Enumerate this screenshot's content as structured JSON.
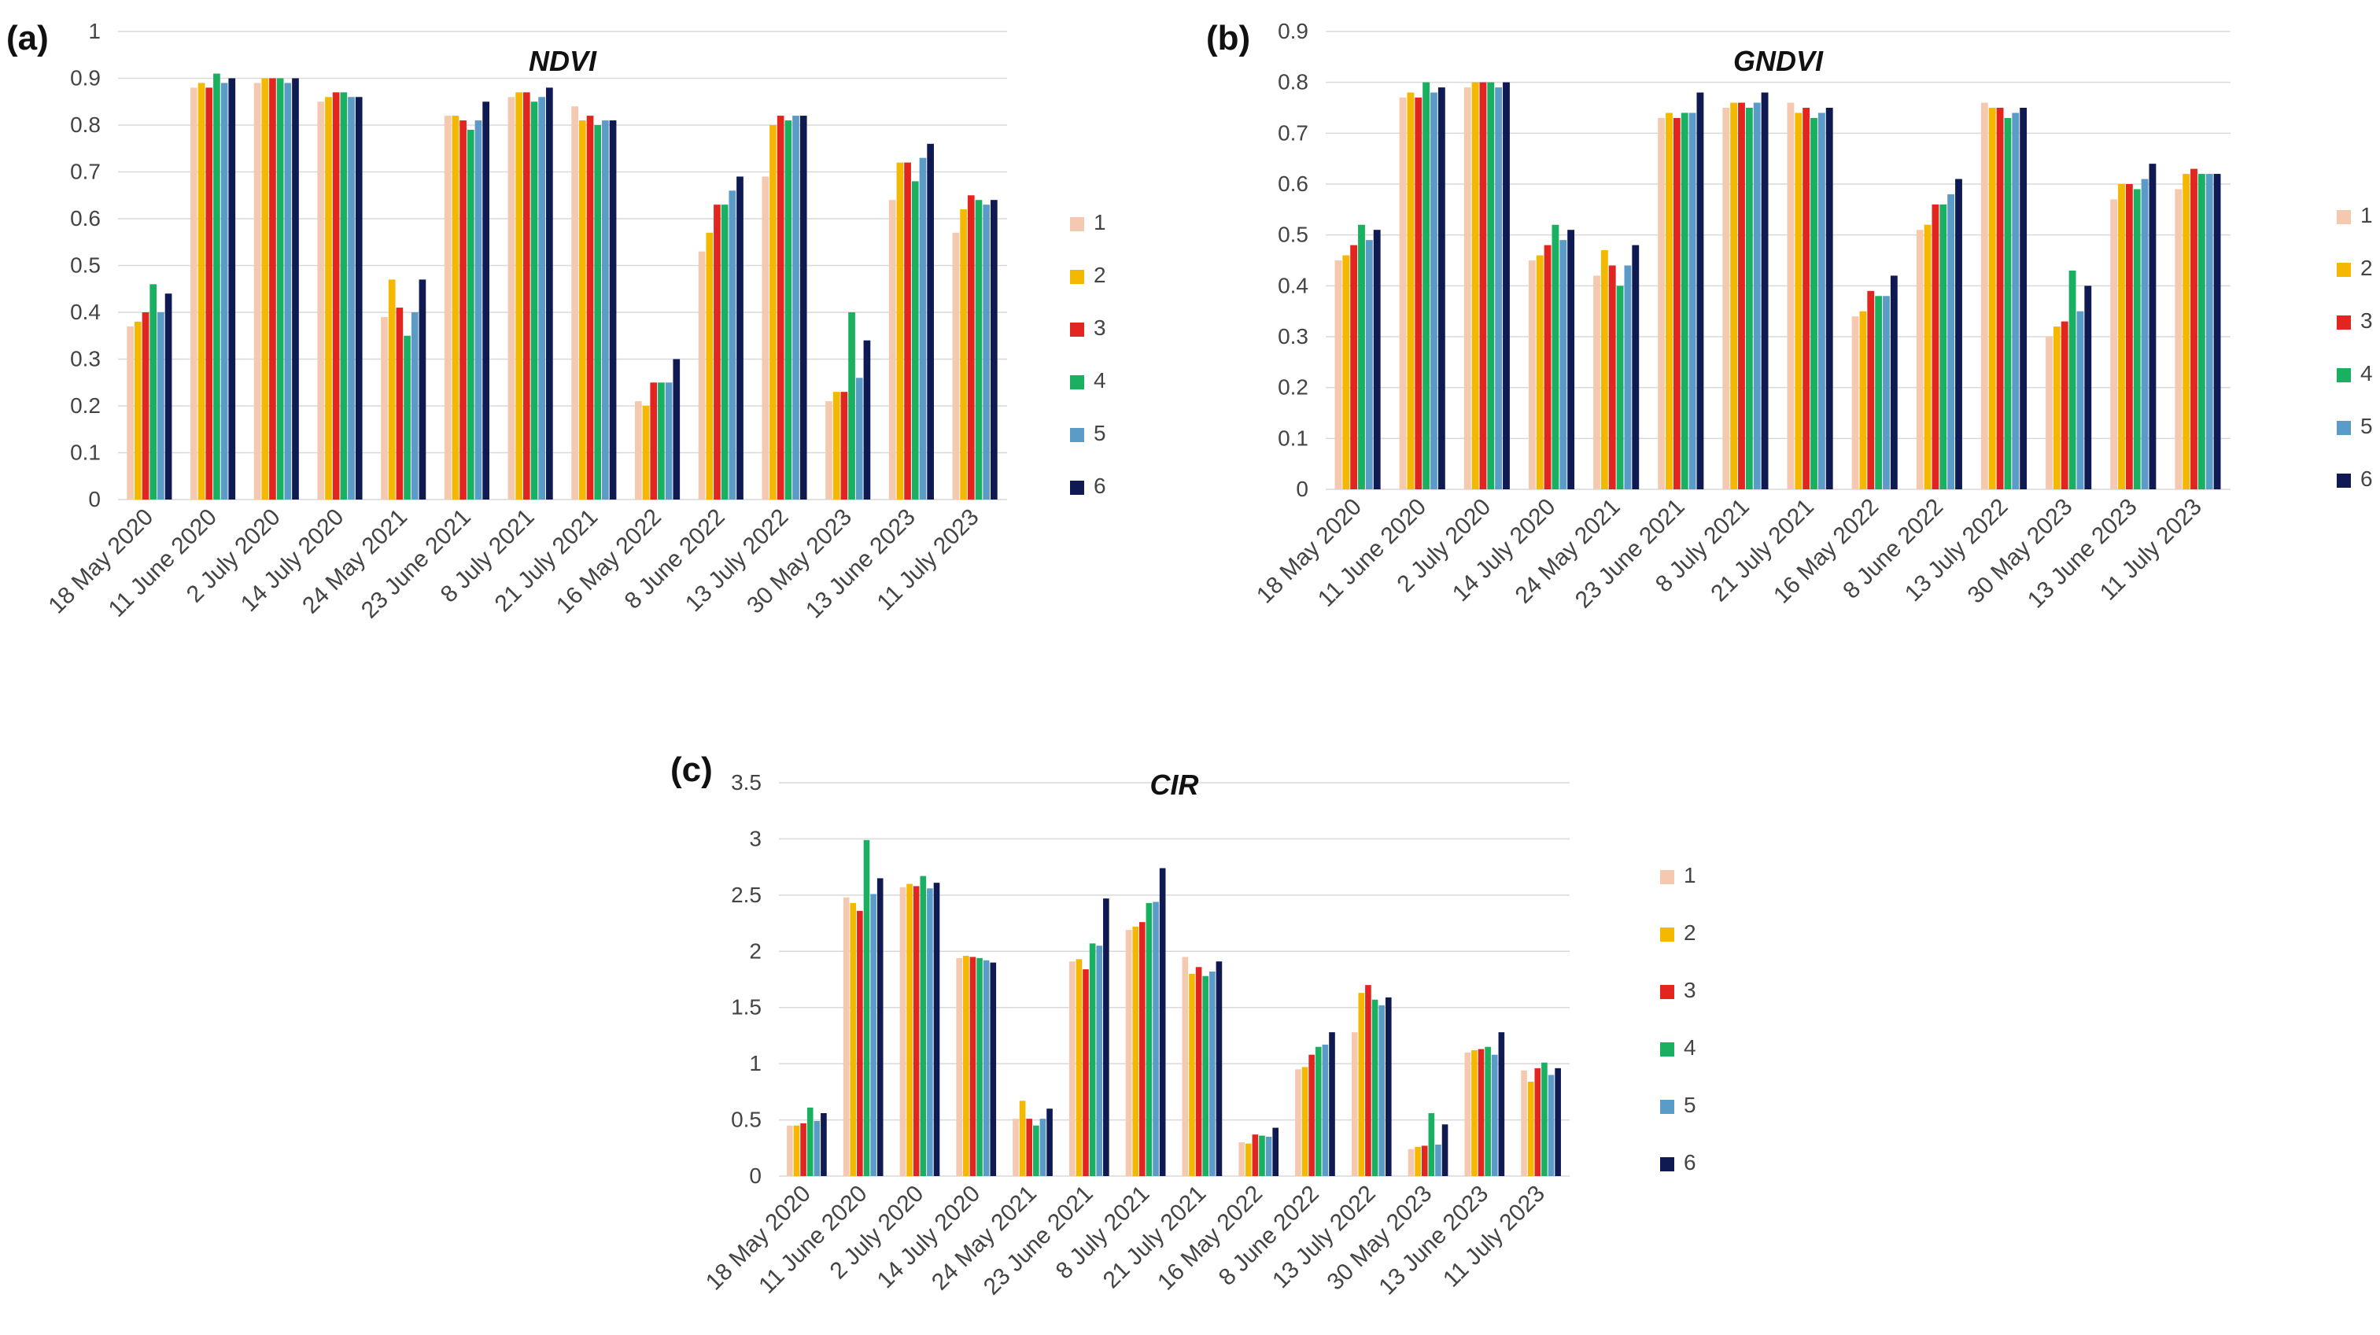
{
  "legend": [
    "1",
    "2",
    "3",
    "4",
    "5",
    "6"
  ],
  "colors": [
    "#f5c9b0",
    "#f5b800",
    "#e3251f",
    "#1ab061",
    "#5b9bc8",
    "#0f1a52"
  ],
  "chart_data": [
    {
      "panel_label": "(a)",
      "type": "bar",
      "title": "NDVI",
      "xlabel": "",
      "ylabel": "",
      "ylim": [
        0,
        1
      ],
      "yticks": [
        "0",
        "0.1",
        "0.2",
        "0.3",
        "0.4",
        "0.5",
        "0.6",
        "0.7",
        "0.8",
        "0.9",
        "1"
      ],
      "grid": true,
      "legend_position": "right",
      "categories": [
        "18 May 2020",
        "11 June 2020",
        "2 July 2020",
        "14 July 2020",
        "24 May 2021",
        "23 June 2021",
        "8 July 2021",
        "21 July 2021",
        "16 May 2022",
        "8 June 2022",
        "13 July 2022",
        "30 May 2023",
        "13 June 2023",
        "11 July 2023"
      ],
      "series": [
        {
          "name": "1",
          "values": [
            0.37,
            0.88,
            0.89,
            0.85,
            0.39,
            0.82,
            0.86,
            0.84,
            0.21,
            0.53,
            0.69,
            0.21,
            0.64,
            0.57
          ]
        },
        {
          "name": "2",
          "values": [
            0.38,
            0.89,
            0.9,
            0.86,
            0.47,
            0.82,
            0.87,
            0.81,
            0.2,
            0.57,
            0.8,
            0.23,
            0.72,
            0.62
          ]
        },
        {
          "name": "3",
          "values": [
            0.4,
            0.88,
            0.9,
            0.87,
            0.41,
            0.81,
            0.87,
            0.82,
            0.25,
            0.63,
            0.82,
            0.23,
            0.72,
            0.65
          ]
        },
        {
          "name": "4",
          "values": [
            0.46,
            0.91,
            0.9,
            0.87,
            0.35,
            0.79,
            0.85,
            0.8,
            0.25,
            0.63,
            0.81,
            0.4,
            0.68,
            0.64
          ]
        },
        {
          "name": "5",
          "values": [
            0.4,
            0.89,
            0.89,
            0.86,
            0.4,
            0.81,
            0.86,
            0.81,
            0.25,
            0.66,
            0.82,
            0.26,
            0.73,
            0.63
          ]
        },
        {
          "name": "6",
          "values": [
            0.44,
            0.9,
            0.9,
            0.86,
            0.47,
            0.85,
            0.88,
            0.81,
            0.3,
            0.69,
            0.82,
            0.34,
            0.76,
            0.64
          ]
        }
      ]
    },
    {
      "panel_label": "(b)",
      "type": "bar",
      "title": "GNDVI",
      "xlabel": "",
      "ylabel": "",
      "ylim": [
        0,
        0.9
      ],
      "yticks": [
        "0",
        "0.1",
        "0.2",
        "0.3",
        "0.4",
        "0.5",
        "0.6",
        "0.7",
        "0.8",
        "0.9"
      ],
      "grid": true,
      "legend_position": "right",
      "categories": [
        "18 May 2020",
        "11 June 2020",
        "2 July 2020",
        "14 July 2020",
        "24 May 2021",
        "23 June 2021",
        "8 July 2021",
        "21 July 2021",
        "16 May 2022",
        "8 June 2022",
        "13 July 2022",
        "30 May 2023",
        "13 June 2023",
        "11 July 2023"
      ],
      "series": [
        {
          "name": "1",
          "values": [
            0.45,
            0.77,
            0.79,
            0.45,
            0.42,
            0.73,
            0.75,
            0.76,
            0.34,
            0.51,
            0.76,
            0.3,
            0.57,
            0.59
          ]
        },
        {
          "name": "2",
          "values": [
            0.46,
            0.78,
            0.8,
            0.46,
            0.47,
            0.74,
            0.76,
            0.74,
            0.35,
            0.52,
            0.75,
            0.32,
            0.6,
            0.62
          ]
        },
        {
          "name": "3",
          "values": [
            0.48,
            0.77,
            0.8,
            0.48,
            0.44,
            0.73,
            0.76,
            0.75,
            0.39,
            0.56,
            0.75,
            0.33,
            0.6,
            0.63
          ]
        },
        {
          "name": "4",
          "values": [
            0.52,
            0.8,
            0.8,
            0.52,
            0.4,
            0.74,
            0.75,
            0.73,
            0.38,
            0.56,
            0.73,
            0.43,
            0.59,
            0.62
          ]
        },
        {
          "name": "5",
          "values": [
            0.49,
            0.78,
            0.79,
            0.49,
            0.44,
            0.74,
            0.76,
            0.74,
            0.38,
            0.58,
            0.74,
            0.35,
            0.61,
            0.62
          ]
        },
        {
          "name": "6",
          "values": [
            0.51,
            0.79,
            0.8,
            0.51,
            0.48,
            0.78,
            0.78,
            0.75,
            0.42,
            0.61,
            0.75,
            0.4,
            0.64,
            0.62
          ]
        }
      ]
    },
    {
      "panel_label": "(c)",
      "type": "bar",
      "title": "CIR",
      "xlabel": "",
      "ylabel": "",
      "ylim": [
        0,
        3.5
      ],
      "yticks": [
        "0",
        "0.5",
        "1",
        "1.5",
        "2",
        "2.5",
        "3",
        "3.5"
      ],
      "grid": true,
      "legend_position": "right",
      "categories": [
        "18 May 2020",
        "11 June 2020",
        "2 July 2020",
        "14 July 2020",
        "24 May 2021",
        "23 June 2021",
        "8 July 2021",
        "21 July 2021",
        "16 May 2022",
        "8 June 2022",
        "13 July 2022",
        "30 May 2023",
        "13 June 2023",
        "11 July 2023"
      ],
      "series": [
        {
          "name": "1",
          "values": [
            0.45,
            2.48,
            2.57,
            1.94,
            0.51,
            1.91,
            2.19,
            1.95,
            0.3,
            0.95,
            1.28,
            0.24,
            1.1,
            0.94
          ]
        },
        {
          "name": "2",
          "values": [
            0.45,
            2.43,
            2.6,
            1.96,
            0.67,
            1.93,
            2.22,
            1.8,
            0.29,
            0.97,
            1.63,
            0.26,
            1.12,
            0.84
          ]
        },
        {
          "name": "3",
          "values": [
            0.47,
            2.36,
            2.58,
            1.95,
            0.51,
            1.84,
            2.26,
            1.86,
            0.37,
            1.08,
            1.7,
            0.27,
            1.13,
            0.96
          ]
        },
        {
          "name": "4",
          "values": [
            0.61,
            2.99,
            2.67,
            1.94,
            0.45,
            2.07,
            2.43,
            1.78,
            0.36,
            1.15,
            1.57,
            0.56,
            1.15,
            1.01
          ]
        },
        {
          "name": "5",
          "values": [
            0.49,
            2.51,
            2.56,
            1.92,
            0.51,
            2.05,
            2.44,
            1.82,
            0.35,
            1.17,
            1.52,
            0.28,
            1.08,
            0.9
          ]
        },
        {
          "name": "6",
          "values": [
            0.56,
            2.65,
            2.61,
            1.9,
            0.6,
            2.47,
            2.74,
            1.91,
            0.43,
            1.28,
            1.59,
            0.46,
            1.28,
            0.96
          ]
        }
      ]
    }
  ]
}
